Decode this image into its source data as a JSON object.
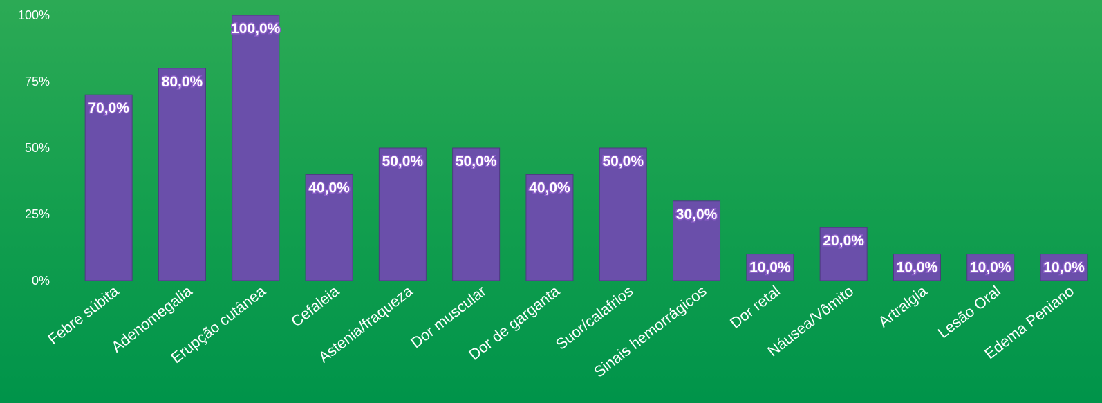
{
  "chart_data": {
    "type": "bar",
    "title": "",
    "xlabel": "",
    "ylabel": "",
    "ylim": [
      0,
      100
    ],
    "yticks": [
      0,
      25,
      50,
      75,
      100
    ],
    "ytick_labels": [
      "0%",
      "25%",
      "50%",
      "75%",
      "100%"
    ],
    "grid": false,
    "categories": [
      "Febre súbita",
      "Adenomegalia",
      "Erupção cutânea",
      "Cefaleia",
      "Astenia/fraqueza",
      "Dor muscular",
      "Dor de garganta",
      "Suor/calafrios",
      "Sinais hemorrágicos",
      "Dor retal",
      "Náusea/Vômito",
      "Artralgia",
      "Lesão Oral",
      "Edema Peniano"
    ],
    "values": [
      70,
      80,
      100,
      40,
      50,
      50,
      40,
      50,
      30,
      10,
      20,
      10,
      10,
      10
    ],
    "data_labels": [
      "70,0%",
      "80,0%",
      "100,0%",
      "40,0%",
      "50,0%",
      "50,0%",
      "40,0%",
      "50,0%",
      "30,0%",
      "10,0%",
      "20,0%",
      "10,0%",
      "10,0%",
      "10,0%"
    ],
    "colors": {
      "bar": "#6a4faa",
      "bar_border": "#4d3a80",
      "background_top": "#2caa55",
      "background_bottom": "#00944a",
      "text": "#ffffff"
    }
  }
}
